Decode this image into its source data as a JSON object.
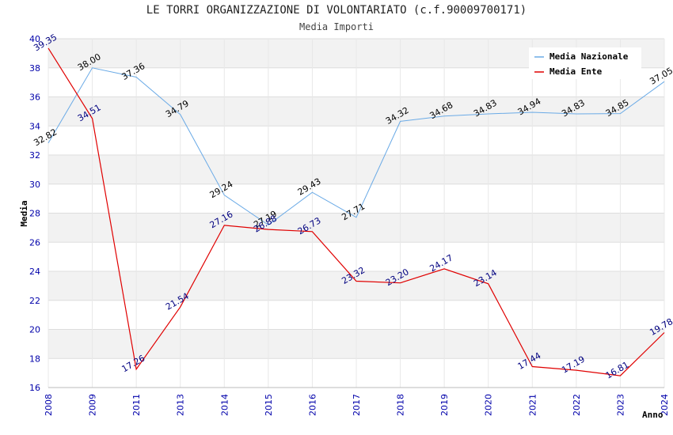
{
  "chart_data": {
    "type": "line",
    "title": "LE TORRI ORGANIZZAZIONE DI VOLONTARIATO (c.f.90009700171)",
    "subtitle": "Media Importi",
    "xlabel": "Anno",
    "ylabel": "Media",
    "ylim": [
      16,
      40
    ],
    "yticks": [
      "16",
      "18",
      "20",
      "22",
      "24",
      "26",
      "28",
      "30",
      "32",
      "34",
      "36",
      "38",
      "40"
    ],
    "categories": [
      "2008",
      "2009",
      "2011",
      "2013",
      "2014",
      "2015",
      "2016",
      "2017",
      "2018",
      "2019",
      "2020",
      "2021",
      "2022",
      "2023",
      "2024"
    ],
    "grid": true,
    "legend_position": "top-right",
    "series": [
      {
        "name": "Media Nazionale",
        "color": "#6aaae6",
        "values": [
          32.82,
          38.0,
          37.36,
          34.79,
          29.24,
          27.19,
          29.43,
          27.71,
          34.32,
          34.68,
          34.83,
          34.94,
          34.83,
          34.85,
          37.05
        ],
        "labels": [
          "32.82",
          "38.00",
          "37.36",
          "34.79",
          "29.24",
          "27.19",
          "29.43",
          "27.71",
          "34.32",
          "34.68",
          "34.83",
          "34.94",
          "34.83",
          "34.85",
          "37.05"
        ]
      },
      {
        "name": "Media Ente",
        "color": "#e00000",
        "values": [
          39.35,
          34.51,
          17.26,
          21.54,
          27.16,
          26.88,
          26.73,
          23.32,
          23.2,
          24.17,
          23.14,
          17.44,
          17.19,
          16.81,
          19.78
        ],
        "labels": [
          "39.35",
          "34.51",
          "17.26",
          "21.54",
          "27.16",
          "26.88",
          "26.73",
          "23.32",
          "23.20",
          "24.17",
          "23.14",
          "17.44",
          "17.19",
          "16.81",
          "19.78"
        ]
      }
    ]
  }
}
